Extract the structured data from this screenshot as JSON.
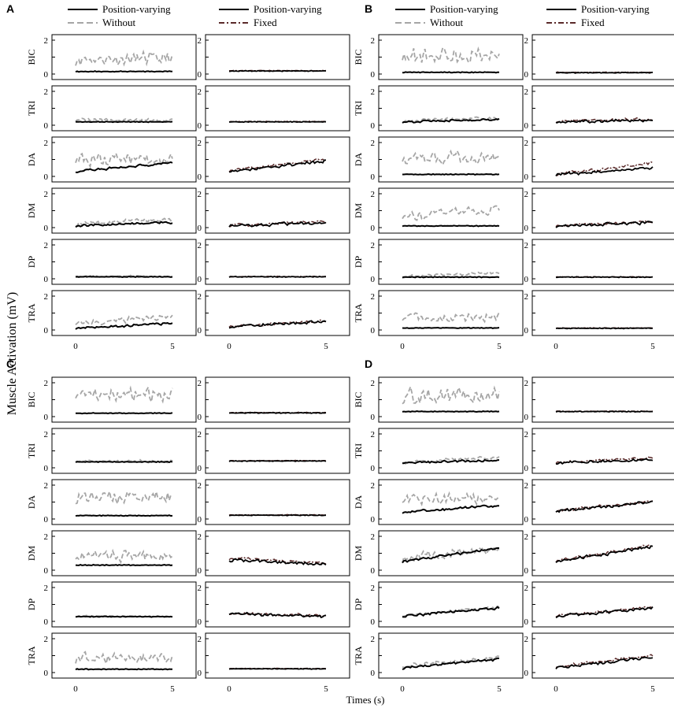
{
  "chart_data": {
    "type": "line",
    "ylabel": "Muscle Activation (mV)",
    "xlabel": "Times (s)",
    "xlim": [
      0,
      5
    ],
    "ylim": [
      0,
      2
    ],
    "x_ticks": [
      "0",
      "5"
    ],
    "y_ticks": [
      "0",
      "1",
      "2"
    ],
    "muscles": [
      "BIC",
      "TRI",
      "DA",
      "DM",
      "DP",
      "TRA"
    ],
    "legend": {
      "left": [
        {
          "label": "Position-varying",
          "style": "solid",
          "color": "#000000"
        },
        {
          "label": "Without",
          "style": "dashed",
          "color": "#a6a6a6"
        }
      ],
      "right": [
        {
          "label": "Position-varying",
          "style": "solid",
          "color": "#000000"
        },
        {
          "label": "Fixed",
          "style": "dashdot",
          "color": "#5a2a2a"
        }
      ]
    },
    "panels": [
      {
        "label": "A",
        "left": [
          {
            "muscle": "BIC",
            "position_varying": 0.15,
            "without": 0.9,
            "without_amp": 0.45
          },
          {
            "muscle": "TRI",
            "position_varying": 0.2,
            "without": 0.28,
            "without_amp": 0.12
          },
          {
            "muscle": "DA",
            "position_varying": [
              0.3,
              0.8
            ],
            "without": 1.0,
            "without_amp": 0.4
          },
          {
            "muscle": "DM",
            "position_varying": [
              0.1,
              0.3
            ],
            "without": [
              0.2,
              0.55
            ],
            "without_amp": 0.15
          },
          {
            "muscle": "DP",
            "position_varying": 0.12,
            "without": 0.15,
            "without_amp": 0.05
          },
          {
            "muscle": "TRA",
            "position_varying": [
              0.1,
              0.4
            ],
            "without": [
              0.4,
              0.8
            ],
            "without_amp": 0.2
          }
        ],
        "right": [
          {
            "muscle": "BIC",
            "position_varying": 0.18,
            "fixed": 0.2
          },
          {
            "muscle": "TRI",
            "position_varying": 0.2,
            "fixed": 0.22
          },
          {
            "muscle": "DA",
            "position_varying": [
              0.3,
              0.9
            ],
            "fixed": [
              0.35,
              1.0
            ]
          },
          {
            "muscle": "DM",
            "position_varying": [
              0.1,
              0.3
            ],
            "fixed": [
              0.12,
              0.35
            ]
          },
          {
            "muscle": "DP",
            "position_varying": 0.12,
            "fixed": 0.13
          },
          {
            "muscle": "TRA",
            "position_varying": [
              0.2,
              0.5
            ],
            "fixed": [
              0.22,
              0.55
            ]
          }
        ]
      },
      {
        "label": "B",
        "left": [
          {
            "muscle": "BIC",
            "position_varying": 0.1,
            "without": 1.1,
            "without_amp": 0.5
          },
          {
            "muscle": "TRI",
            "position_varying": [
              0.2,
              0.35
            ],
            "without": [
              0.25,
              0.45
            ],
            "without_amp": 0.1
          },
          {
            "muscle": "DA",
            "position_varying": 0.12,
            "without": 1.1,
            "without_amp": 0.4
          },
          {
            "muscle": "DM",
            "position_varying": 0.1,
            "without": [
              0.7,
              1.1
            ],
            "without_amp": 0.35
          },
          {
            "muscle": "DP",
            "position_varying": 0.1,
            "without": [
              0.15,
              0.35
            ],
            "without_amp": 0.1
          },
          {
            "muscle": "TRA",
            "position_varying": 0.12,
            "without": 0.75,
            "without_amp": 0.3
          }
        ],
        "right": [
          {
            "muscle": "BIC",
            "position_varying": 0.08,
            "fixed": 0.1
          },
          {
            "muscle": "TRI",
            "position_varying": [
              0.2,
              0.3
            ],
            "fixed": [
              0.22,
              0.35
            ]
          },
          {
            "muscle": "DA",
            "position_varying": [
              0.1,
              0.5
            ],
            "fixed": [
              0.12,
              0.8
            ]
          },
          {
            "muscle": "DM",
            "position_varying": [
              0.08,
              0.3
            ],
            "fixed": [
              0.1,
              0.35
            ]
          },
          {
            "muscle": "DP",
            "position_varying": 0.1,
            "fixed": 0.11
          },
          {
            "muscle": "TRA",
            "position_varying": 0.1,
            "fixed": 0.12
          }
        ]
      },
      {
        "label": "C",
        "left": [
          {
            "muscle": "BIC",
            "position_varying": 0.2,
            "without": 1.3,
            "without_amp": 0.45
          },
          {
            "muscle": "TRI",
            "position_varying": 0.35,
            "without": 0.4,
            "without_amp": 0.1
          },
          {
            "muscle": "DA",
            "position_varying": 0.2,
            "without": 1.3,
            "without_amp": 0.45
          },
          {
            "muscle": "DM",
            "position_varying": 0.3,
            "without": 0.85,
            "without_amp": 0.35
          },
          {
            "muscle": "DP",
            "position_varying": 0.28,
            "without": 0.3,
            "without_amp": 0.06
          },
          {
            "muscle": "TRA",
            "position_varying": 0.2,
            "without": 0.85,
            "without_amp": 0.35
          }
        ],
        "right": [
          {
            "muscle": "BIC",
            "position_varying": 0.22,
            "fixed": 0.24
          },
          {
            "muscle": "TRI",
            "position_varying": 0.4,
            "fixed": 0.42
          },
          {
            "muscle": "DA",
            "position_varying": 0.22,
            "fixed": 0.24
          },
          {
            "muscle": "DM",
            "position_varying": [
              0.6,
              0.35
            ],
            "fixed": [
              0.7,
              0.4
            ]
          },
          {
            "muscle": "DP",
            "position_varying": [
              0.45,
              0.3
            ],
            "fixed": [
              0.5,
              0.32
            ]
          },
          {
            "muscle": "TRA",
            "position_varying": 0.22,
            "fixed": 0.24
          }
        ]
      },
      {
        "label": "D",
        "left": [
          {
            "muscle": "BIC",
            "position_varying": 0.3,
            "without": 1.2,
            "without_amp": 0.5
          },
          {
            "muscle": "TRI",
            "position_varying": [
              0.3,
              0.45
            ],
            "without": [
              0.35,
              0.6
            ],
            "without_amp": 0.12
          },
          {
            "muscle": "DA",
            "position_varying": [
              0.4,
              0.8
            ],
            "without": 1.2,
            "without_amp": 0.4
          },
          {
            "muscle": "DM",
            "position_varying": [
              0.5,
              1.3
            ],
            "without": [
              0.7,
              1.3
            ],
            "without_amp": 0.3
          },
          {
            "muscle": "DP",
            "position_varying": [
              0.3,
              0.8
            ],
            "without": [
              0.35,
              0.85
            ],
            "without_amp": 0.1
          },
          {
            "muscle": "TRA",
            "position_varying": [
              0.25,
              0.8
            ],
            "without": [
              0.4,
              0.85
            ],
            "without_amp": 0.15
          }
        ],
        "right": [
          {
            "muscle": "BIC",
            "position_varying": 0.3,
            "fixed": 0.32
          },
          {
            "muscle": "TRI",
            "position_varying": [
              0.3,
              0.5
            ],
            "fixed": [
              0.32,
              0.6
            ]
          },
          {
            "muscle": "DA",
            "position_varying": [
              0.45,
              1.0
            ],
            "fixed": [
              0.5,
              1.05
            ]
          },
          {
            "muscle": "DM",
            "position_varying": [
              0.5,
              1.4
            ],
            "fixed": [
              0.55,
              1.45
            ]
          },
          {
            "muscle": "DP",
            "position_varying": [
              0.3,
              0.8
            ],
            "fixed": [
              0.32,
              0.85
            ]
          },
          {
            "muscle": "TRA",
            "position_varying": [
              0.3,
              0.9
            ],
            "fixed": [
              0.35,
              1.0
            ]
          }
        ]
      }
    ]
  }
}
